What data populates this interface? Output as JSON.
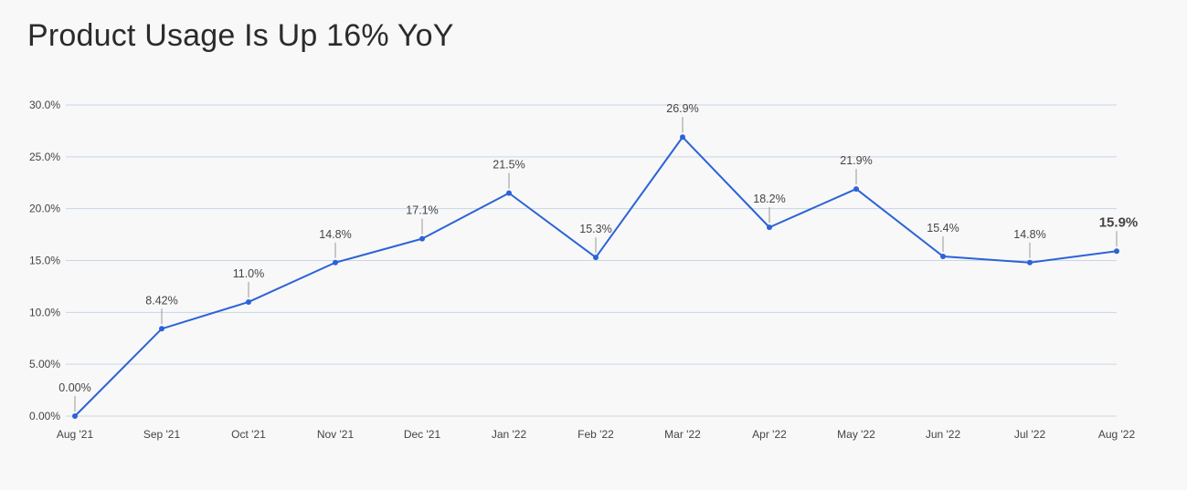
{
  "title": "Product Usage Is Up 16% YoY",
  "colors": {
    "line": "#2c63d6",
    "highlight": "#2c63d6",
    "grid": "#c9d6e6",
    "leader": "#999999"
  },
  "chart_data": {
    "type": "line",
    "title": "Product Usage Is Up 16% YoY",
    "xlabel": "",
    "ylabel": "",
    "categories": [
      "Aug '21",
      "Sep '21",
      "Oct '21",
      "Nov '21",
      "Dec '21",
      "Jan '22",
      "Feb '22",
      "Mar '22",
      "Apr '22",
      "May '22",
      "Jun '22",
      "Jul '22",
      "Aug '22"
    ],
    "values": [
      0.0,
      8.42,
      11.0,
      14.8,
      17.1,
      21.5,
      15.3,
      26.9,
      18.2,
      21.9,
      15.4,
      14.8,
      15.9
    ],
    "data_labels": [
      "0.00%",
      "8.42%",
      "11.0%",
      "14.8%",
      "17.1%",
      "21.5%",
      "15.3%",
      "26.9%",
      "18.2%",
      "21.9%",
      "15.4%",
      "14.8%",
      "15.9%"
    ],
    "ylim": [
      0,
      30
    ],
    "yticks": [
      0,
      5,
      10,
      15,
      20,
      25,
      30
    ],
    "ytick_labels": [
      "0.00%",
      "5.00%",
      "10.0%",
      "15.0%",
      "20.0%",
      "25.0%",
      "30.0%"
    ],
    "grid": true,
    "legend": "none",
    "highlight_last": true
  }
}
